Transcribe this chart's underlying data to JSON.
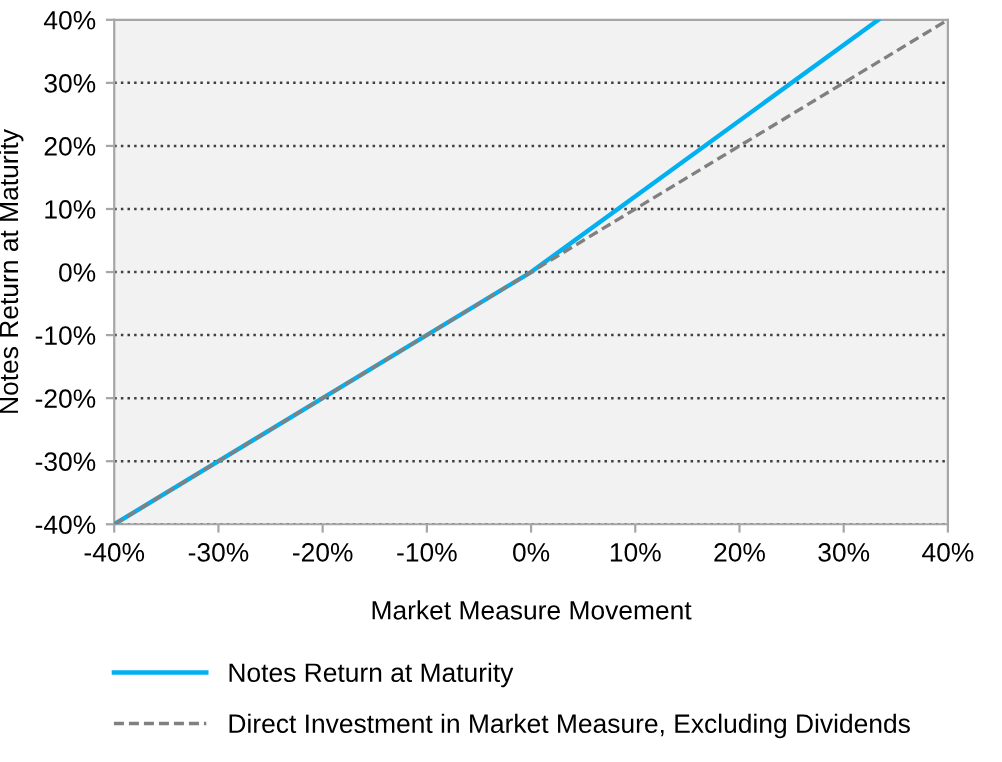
{
  "chart_data": {
    "type": "line",
    "xlabel": "Market Measure Movement",
    "ylabel": "Notes Return at Maturity",
    "series": [
      {
        "name": "Notes Return at Maturity",
        "color": "#00b0f0",
        "x": [
          -40,
          0,
          33.33
        ],
        "values": [
          -40,
          0,
          40
        ],
        "line_style": "solid"
      },
      {
        "name": "Direct Investment in Market Measure, Excluding Dividends",
        "color": "#808080",
        "x": [
          -40,
          0,
          40
        ],
        "values": [
          -40,
          0,
          40
        ],
        "line_style": "dashed"
      }
    ],
    "xlim": [
      -40,
      40
    ],
    "ylim": [
      -40,
      40
    ],
    "xticks": [
      {
        "value": -40,
        "label": "-40%"
      },
      {
        "value": -30,
        "label": "-30%"
      },
      {
        "value": -20,
        "label": "-20%"
      },
      {
        "value": -10,
        "label": "-10%"
      },
      {
        "value": 0,
        "label": "0%"
      },
      {
        "value": 10,
        "label": "10%"
      },
      {
        "value": 20,
        "label": "20%"
      },
      {
        "value": 30,
        "label": "30%"
      },
      {
        "value": 40,
        "label": "40%"
      }
    ],
    "yticks": [
      {
        "value": -40,
        "label": "-40%"
      },
      {
        "value": -30,
        "label": "-30%"
      },
      {
        "value": -20,
        "label": "-20%"
      },
      {
        "value": -10,
        "label": "-10%"
      },
      {
        "value": 0,
        "label": "0%"
      },
      {
        "value": 10,
        "label": "10%"
      },
      {
        "value": 20,
        "label": "20%"
      },
      {
        "value": 30,
        "label": "30%"
      },
      {
        "value": 40,
        "label": "40%"
      }
    ],
    "grid": "y",
    "legend": "bottom"
  }
}
